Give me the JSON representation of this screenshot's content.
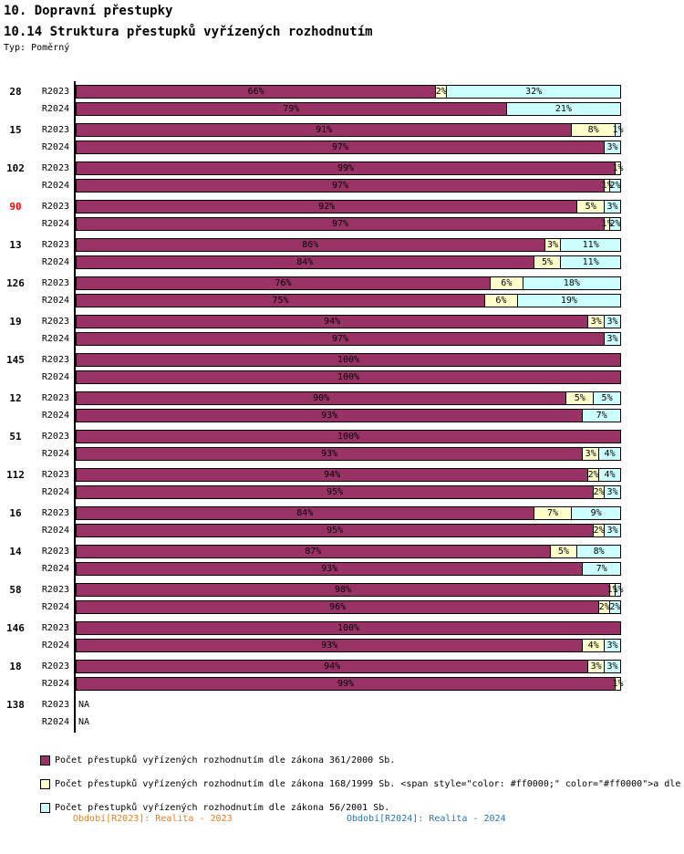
{
  "header": {
    "section_title": "10. Dopravní přestupky",
    "chart_title": "10.14 Struktura přestupků vyřízených rozhodnutím",
    "type_label": "Typ: Poměrný"
  },
  "chart_data": {
    "type": "bar",
    "variant": "horizontal-stacked-percent",
    "value_unit": "%",
    "axis": {
      "x_min": 0,
      "x_max": 100,
      "grid": false
    },
    "legend_position": "bottom-left",
    "na_label": "NA",
    "series": [
      {
        "key": "z361",
        "name": "Počet přestupků vyřízených rozhodnutím dle zákona 361/2000 Sb.",
        "color": "#993366"
      },
      {
        "key": "z168",
        "name": "Počet přestupků vyřízených rozhodnutím dle zákona 168/1999 Sb. <span style=\"color: #ff0000;\" color=\"#ff0000\">a dle",
        "color": "#FFFFCC"
      },
      {
        "key": "z56",
        "name": "Počet přestupků vyřízených rozhodnutím dle zákona 56/2001 Sb.",
        "color": "#CCFFFF"
      }
    ],
    "groups": [
      {
        "label": "28",
        "label_color": "#000000",
        "rows": [
          {
            "period": "R2023",
            "segments": [
              {
                "series": "z361",
                "value": 66
              },
              {
                "series": "z168",
                "value": 2
              },
              {
                "series": "z56",
                "value": 32
              }
            ]
          },
          {
            "period": "R2024",
            "segments": [
              {
                "series": "z361",
                "value": 79
              },
              {
                "series": "z56",
                "value": 21
              }
            ]
          }
        ]
      },
      {
        "label": "15",
        "label_color": "#000000",
        "rows": [
          {
            "period": "R2023",
            "segments": [
              {
                "series": "z361",
                "value": 91
              },
              {
                "series": "z168",
                "value": 8
              },
              {
                "series": "z56",
                "value": 1
              }
            ]
          },
          {
            "period": "R2024",
            "segments": [
              {
                "series": "z361",
                "value": 97
              },
              {
                "series": "z56",
                "value": 3
              }
            ]
          }
        ]
      },
      {
        "label": "102",
        "label_color": "#000000",
        "rows": [
          {
            "period": "R2023",
            "segments": [
              {
                "series": "z361",
                "value": 99
              },
              {
                "series": "z168",
                "value": 1
              }
            ]
          },
          {
            "period": "R2024",
            "segments": [
              {
                "series": "z361",
                "value": 97
              },
              {
                "series": "z168",
                "value": 1
              },
              {
                "series": "z56",
                "value": 2
              }
            ]
          }
        ]
      },
      {
        "label": "90",
        "label_color": "#FF0000",
        "rows": [
          {
            "period": "R2023",
            "segments": [
              {
                "series": "z361",
                "value": 92
              },
              {
                "series": "z168",
                "value": 5
              },
              {
                "series": "z56",
                "value": 3
              }
            ]
          },
          {
            "period": "R2024",
            "segments": [
              {
                "series": "z361",
                "value": 97
              },
              {
                "series": "z168",
                "value": 1
              },
              {
                "series": "z56",
                "value": 2
              }
            ]
          }
        ]
      },
      {
        "label": "13",
        "label_color": "#000000",
        "rows": [
          {
            "period": "R2023",
            "segments": [
              {
                "series": "z361",
                "value": 86
              },
              {
                "series": "z168",
                "value": 3
              },
              {
                "series": "z56",
                "value": 11
              }
            ]
          },
          {
            "period": "R2024",
            "segments": [
              {
                "series": "z361",
                "value": 84
              },
              {
                "series": "z168",
                "value": 5
              },
              {
                "series": "z56",
                "value": 11
              }
            ]
          }
        ]
      },
      {
        "label": "126",
        "label_color": "#000000",
        "rows": [
          {
            "period": "R2023",
            "segments": [
              {
                "series": "z361",
                "value": 76
              },
              {
                "series": "z168",
                "value": 6
              },
              {
                "series": "z56",
                "value": 18
              }
            ]
          },
          {
            "period": "R2024",
            "segments": [
              {
                "series": "z361",
                "value": 75
              },
              {
                "series": "z168",
                "value": 6
              },
              {
                "series": "z56",
                "value": 19
              }
            ]
          }
        ]
      },
      {
        "label": "19",
        "label_color": "#000000",
        "rows": [
          {
            "period": "R2023",
            "segments": [
              {
                "series": "z361",
                "value": 94
              },
              {
                "series": "z168",
                "value": 3
              },
              {
                "series": "z56",
                "value": 3
              }
            ]
          },
          {
            "period": "R2024",
            "segments": [
              {
                "series": "z361",
                "value": 97
              },
              {
                "series": "z56",
                "value": 3
              }
            ]
          }
        ]
      },
      {
        "label": "145",
        "label_color": "#000000",
        "rows": [
          {
            "period": "R2023",
            "segments": [
              {
                "series": "z361",
                "value": 100
              }
            ]
          },
          {
            "period": "R2024",
            "segments": [
              {
                "series": "z361",
                "value": 100
              }
            ]
          }
        ]
      },
      {
        "label": "12",
        "label_color": "#000000",
        "rows": [
          {
            "period": "R2023",
            "segments": [
              {
                "series": "z361",
                "value": 90
              },
              {
                "series": "z168",
                "value": 5
              },
              {
                "series": "z56",
                "value": 5
              }
            ]
          },
          {
            "period": "R2024",
            "segments": [
              {
                "series": "z361",
                "value": 93
              },
              {
                "series": "z56",
                "value": 7
              }
            ]
          }
        ]
      },
      {
        "label": "51",
        "label_color": "#000000",
        "rows": [
          {
            "period": "R2023",
            "segments": [
              {
                "series": "z361",
                "value": 100
              }
            ]
          },
          {
            "period": "R2024",
            "segments": [
              {
                "series": "z361",
                "value": 93
              },
              {
                "series": "z168",
                "value": 3
              },
              {
                "series": "z56",
                "value": 4
              }
            ]
          }
        ]
      },
      {
        "label": "112",
        "label_color": "#000000",
        "rows": [
          {
            "period": "R2023",
            "segments": [
              {
                "series": "z361",
                "value": 94
              },
              {
                "series": "z168",
                "value": 2
              },
              {
                "series": "z56",
                "value": 4
              }
            ]
          },
          {
            "period": "R2024",
            "segments": [
              {
                "series": "z361",
                "value": 95
              },
              {
                "series": "z168",
                "value": 2
              },
              {
                "series": "z56",
                "value": 3
              }
            ]
          }
        ]
      },
      {
        "label": "16",
        "label_color": "#000000",
        "rows": [
          {
            "period": "R2023",
            "segments": [
              {
                "series": "z361",
                "value": 84
              },
              {
                "series": "z168",
                "value": 7
              },
              {
                "series": "z56",
                "value": 9
              }
            ]
          },
          {
            "period": "R2024",
            "segments": [
              {
                "series": "z361",
                "value": 95
              },
              {
                "series": "z168",
                "value": 2
              },
              {
                "series": "z56",
                "value": 3
              }
            ]
          }
        ]
      },
      {
        "label": "14",
        "label_color": "#000000",
        "rows": [
          {
            "period": "R2023",
            "segments": [
              {
                "series": "z361",
                "value": 87
              },
              {
                "series": "z168",
                "value": 5
              },
              {
                "series": "z56",
                "value": 8
              }
            ]
          },
          {
            "period": "R2024",
            "segments": [
              {
                "series": "z361",
                "value": 93
              },
              {
                "series": "z56",
                "value": 7
              }
            ]
          }
        ]
      },
      {
        "label": "58",
        "label_color": "#000000",
        "rows": [
          {
            "period": "R2023",
            "segments": [
              {
                "series": "z361",
                "value": 98
              },
              {
                "series": "z168",
                "value": 1
              },
              {
                "series": "z56",
                "value": 1
              }
            ]
          },
          {
            "period": "R2024",
            "segments": [
              {
                "series": "z361",
                "value": 96
              },
              {
                "series": "z168",
                "value": 2
              },
              {
                "series": "z56",
                "value": 2
              }
            ]
          }
        ]
      },
      {
        "label": "146",
        "label_color": "#000000",
        "rows": [
          {
            "period": "R2023",
            "segments": [
              {
                "series": "z361",
                "value": 100
              }
            ]
          },
          {
            "period": "R2024",
            "segments": [
              {
                "series": "z361",
                "value": 93
              },
              {
                "series": "z168",
                "value": 4
              },
              {
                "series": "z56",
                "value": 3
              }
            ]
          }
        ]
      },
      {
        "label": "18",
        "label_color": "#000000",
        "rows": [
          {
            "period": "R2023",
            "segments": [
              {
                "series": "z361",
                "value": 94
              },
              {
                "series": "z168",
                "value": 3
              },
              {
                "series": "z56",
                "value": 3
              }
            ]
          },
          {
            "period": "R2024",
            "segments": [
              {
                "series": "z361",
                "value": 99
              },
              {
                "series": "z168",
                "value": 1
              }
            ]
          }
        ]
      },
      {
        "label": "138",
        "label_color": "#000000",
        "rows": [
          {
            "period": "R2023",
            "na": true
          },
          {
            "period": "R2024",
            "na": true
          }
        ]
      }
    ]
  },
  "footer": {
    "left": {
      "text": "Období[R2023]: Realita - 2023",
      "color": "#EE7D16"
    },
    "right": {
      "text": "Období[R2024]: Realita - 2024",
      "color": "#1F77B4"
    }
  }
}
